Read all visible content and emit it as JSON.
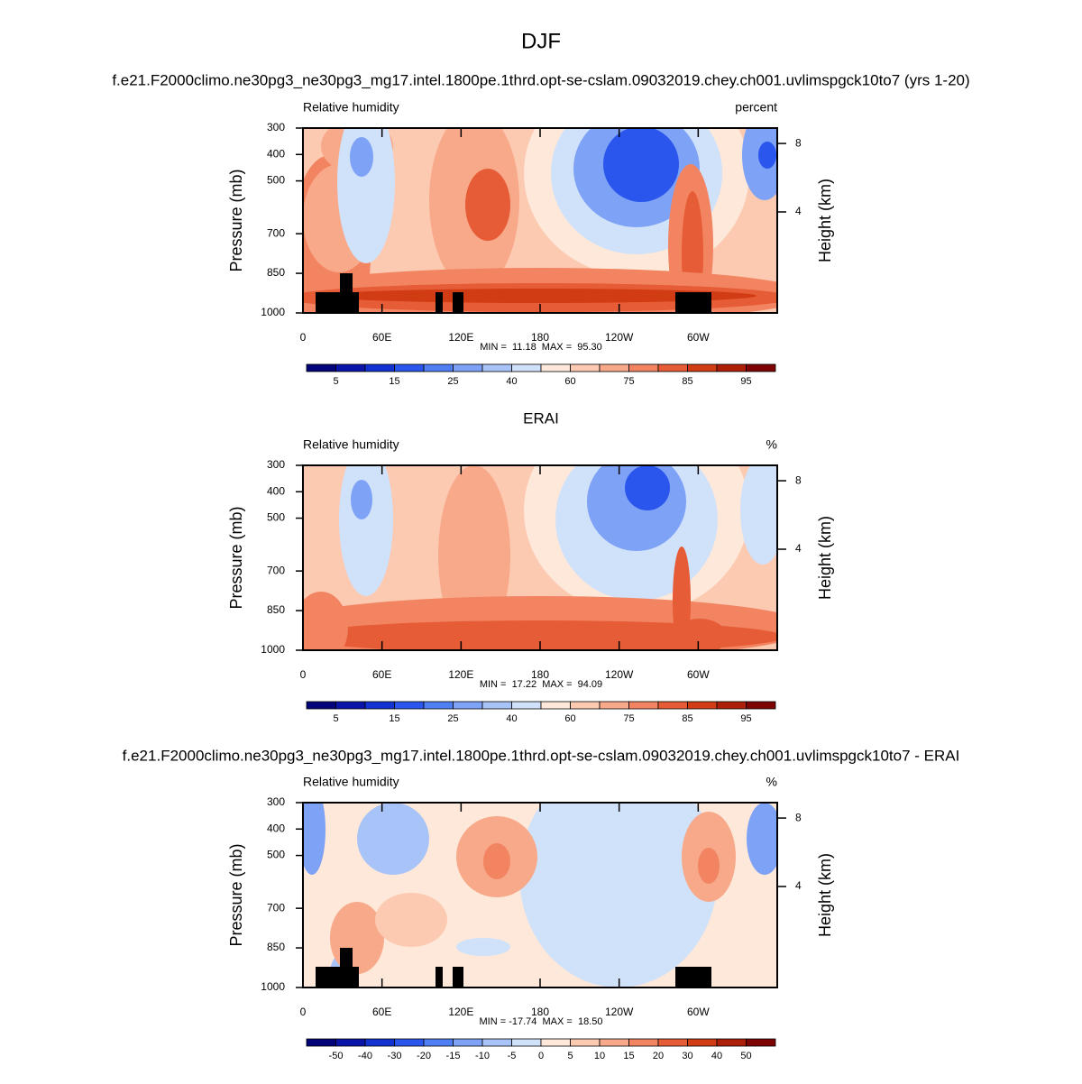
{
  "chart_data": [
    {
      "type": "contour",
      "title": "DJF",
      "subtitle": "f.e21.F2000climo.ne30pg3_ne30pg3_mg17.intel.1800pe.1thrd.opt-se-cslam.09032019.chey.ch001.uvlimspgck10to7 (yrs 1-20)",
      "left_label": "Relative humidity",
      "units": "percent",
      "ylabel": "Pressure (mb)",
      "y2label": "Height (km)",
      "xlim": [
        0,
        360
      ],
      "xticks": [
        0,
        {
          "value": 60,
          "label": "60E"
        },
        {
          "value": 120,
          "label": "120E"
        },
        180,
        {
          "value": 240,
          "label": "120W"
        },
        {
          "value": 300,
          "label": "60W"
        }
      ],
      "ylim": [
        1000,
        300
      ],
      "yticks": [
        300,
        400,
        500,
        700,
        850,
        1000
      ],
      "y2lim": [
        -1.9,
        8.9
      ],
      "y2ticks": [
        4,
        8
      ],
      "stats": "MIN =  11.18  MAX =  95.30",
      "colorbar": {
        "colors": [
          "#03037a",
          "#0a14a8",
          "#1232d2",
          "#2a56ee",
          "#4f7ff2",
          "#7ea2f5",
          "#a8c3f7",
          "#d0e1fa",
          "#fde8da",
          "#fcc9b1",
          "#f8a98a",
          "#f28462",
          "#e65c36",
          "#d23c14",
          "#ae1f0a",
          "#7e0404"
        ],
        "labels": [
          5,
          15,
          25,
          40,
          60,
          75,
          85,
          95
        ],
        "label_every": 2
      }
    },
    {
      "type": "contour",
      "title": "ERAI",
      "left_label": "Relative humidity",
      "units": "%",
      "ylabel": "Pressure (mb)",
      "y2label": "Height (km)",
      "xlim": [
        0,
        360
      ],
      "xticks": [
        0,
        {
          "value": 60,
          "label": "60E"
        },
        {
          "value": 120,
          "label": "120E"
        },
        180,
        {
          "value": 240,
          "label": "120W"
        },
        {
          "value": 300,
          "label": "60W"
        }
      ],
      "ylim": [
        1000,
        300
      ],
      "yticks": [
        300,
        400,
        500,
        700,
        850,
        1000
      ],
      "y2lim": [
        -1.9,
        8.9
      ],
      "y2ticks": [
        4,
        8
      ],
      "stats": "MIN =  17.22  MAX =  94.09",
      "colorbar": {
        "colors": [
          "#03037a",
          "#0a14a8",
          "#1232d2",
          "#2a56ee",
          "#4f7ff2",
          "#7ea2f5",
          "#a8c3f7",
          "#d0e1fa",
          "#fde8da",
          "#fcc9b1",
          "#f8a98a",
          "#f28462",
          "#e65c36",
          "#d23c14",
          "#ae1f0a",
          "#7e0404"
        ],
        "labels": [
          5,
          15,
          25,
          40,
          60,
          75,
          85,
          95
        ],
        "label_every": 2
      }
    },
    {
      "type": "contour",
      "title": "f.e21.F2000climo.ne30pg3_ne30pg3_mg17.intel.1800pe.1thrd.opt-se-cslam.09032019.chey.ch001.uvlimspgck10to7 - ERAI",
      "left_label": "Relative humidity",
      "units": "%",
      "ylabel": "Pressure (mb)",
      "y2label": "Height (km)",
      "xlim": [
        0,
        360
      ],
      "xticks": [
        0,
        {
          "value": 60,
          "label": "60E"
        },
        {
          "value": 120,
          "label": "120E"
        },
        180,
        {
          "value": 240,
          "label": "120W"
        },
        {
          "value": 300,
          "label": "60W"
        }
      ],
      "ylim": [
        1000,
        300
      ],
      "yticks": [
        300,
        400,
        500,
        700,
        850,
        1000
      ],
      "y2lim": [
        -1.9,
        8.9
      ],
      "y2ticks": [
        4,
        8
      ],
      "stats": "MIN = -17.74  MAX =  18.50",
      "colorbar": {
        "colors": [
          "#03037a",
          "#0a14a8",
          "#1232d2",
          "#2a56ee",
          "#4f7ff2",
          "#7ea2f5",
          "#a8c3f7",
          "#d0e1fa",
          "#fde8da",
          "#fcc9b1",
          "#f8a98a",
          "#f28462",
          "#e65c36",
          "#d23c14",
          "#ae1f0a",
          "#7e0404"
        ],
        "labels": [
          -50,
          -40,
          -30,
          -20,
          -15,
          -10,
          -5,
          0,
          5,
          10,
          15,
          20,
          30,
          40,
          50
        ],
        "label_every": 1
      }
    }
  ]
}
